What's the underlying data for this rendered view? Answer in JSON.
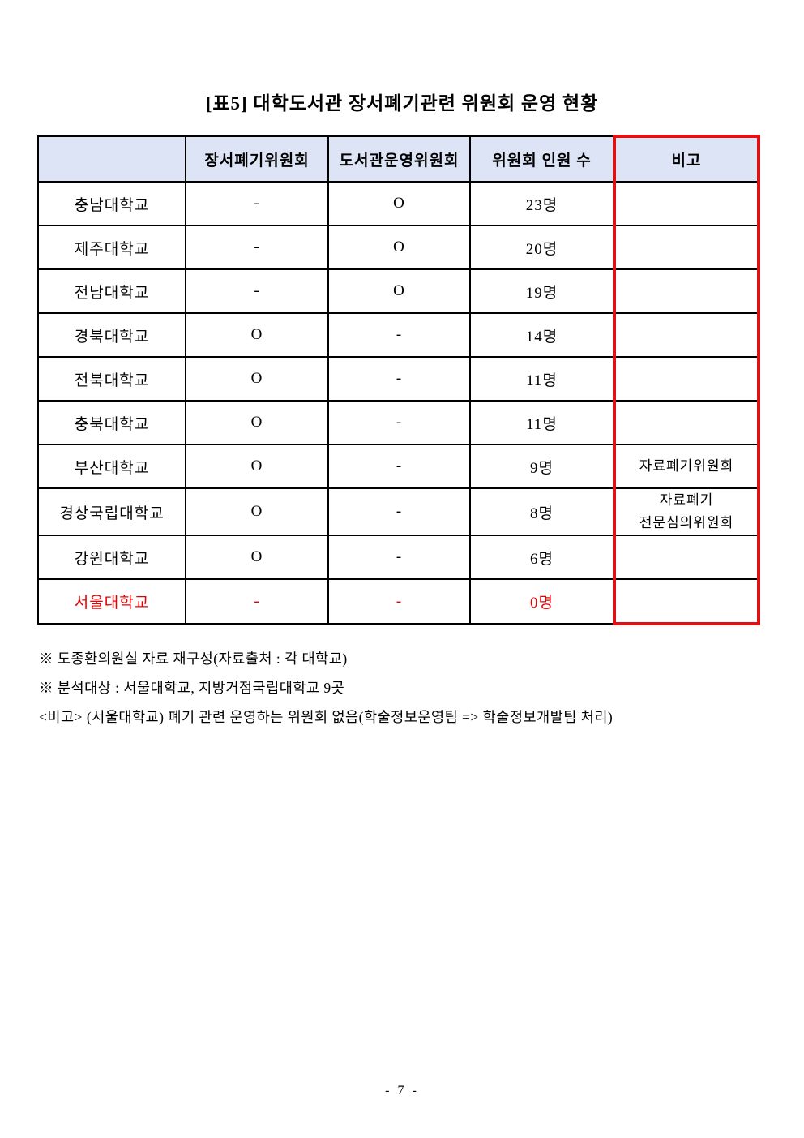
{
  "title": "[표5] 대학도서관 장서폐기관련 위원회 운영 현황",
  "table": {
    "columns": [
      "",
      "장서폐기위원회",
      "도서관운영위원회",
      "위원회 인원 수",
      "비고"
    ],
    "rows": [
      {
        "university": "충남대학교",
        "disposal_committee": "-",
        "operation_committee": "O",
        "member_count": "23명",
        "remark": "",
        "highlight": false
      },
      {
        "university": "제주대학교",
        "disposal_committee": "-",
        "operation_committee": "O",
        "member_count": "20명",
        "remark": "",
        "highlight": false
      },
      {
        "university": "전남대학교",
        "disposal_committee": "-",
        "operation_committee": "O",
        "member_count": "19명",
        "remark": "",
        "highlight": false
      },
      {
        "university": "경북대학교",
        "disposal_committee": "O",
        "operation_committee": "-",
        "member_count": "14명",
        "remark": "",
        "highlight": false
      },
      {
        "university": "전북대학교",
        "disposal_committee": "O",
        "operation_committee": "-",
        "member_count": "11명",
        "remark": "",
        "highlight": false
      },
      {
        "university": "충북대학교",
        "disposal_committee": "O",
        "operation_committee": "-",
        "member_count": "11명",
        "remark": "",
        "highlight": false
      },
      {
        "university": "부산대학교",
        "disposal_committee": "O",
        "operation_committee": "-",
        "member_count": "9명",
        "remark": "자료폐기위원회",
        "highlight": false
      },
      {
        "university": "경상국립대학교",
        "disposal_committee": "O",
        "operation_committee": "-",
        "member_count": "8명",
        "remark": "자료폐기\n전문심의위원회",
        "highlight": false
      },
      {
        "university": "강원대학교",
        "disposal_committee": "O",
        "operation_committee": "-",
        "member_count": "6명",
        "remark": "",
        "highlight": false
      },
      {
        "university": "서울대학교",
        "disposal_committee": "-",
        "operation_committee": "-",
        "member_count": "0명",
        "remark": "",
        "highlight": true
      }
    ]
  },
  "footnotes": [
    "※ 도종환의원실 자료 재구성(자료출처 : 각 대학교)",
    "※ 분석대상 : 서울대학교, 지방거점국립대학교 9곳",
    "<비고> (서울대학교) 폐기 관련 운영하는 위원회 없음(학술정보운영팀 => 학술정보개발팀 처리)"
  ],
  "page": {
    "number_label": "- 7 -"
  },
  "colors": {
    "header_bg": "#dce4f5",
    "remark_border_red": "#e01111",
    "highlight_text_red": "#e60000",
    "table_border": "#000000"
  }
}
